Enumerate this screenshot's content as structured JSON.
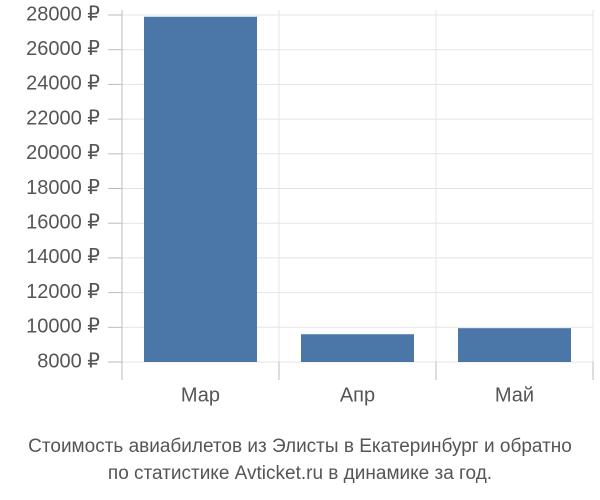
{
  "chart_data": {
    "type": "bar",
    "title": [
      "Стоимость авиабилетов из Элисты в Екатеринбург и обратно",
      "по статистике Avticket.ru в динамике за год."
    ],
    "categories": [
      "Мар",
      "Апр",
      "Май"
    ],
    "values": [
      27900,
      9600,
      9950
    ],
    "color": "#4a76a8",
    "ylim": [
      8000,
      28000
    ],
    "yticks": [
      {
        "value": 8000,
        "label": "8000 ₽"
      },
      {
        "value": 10000,
        "label": "10000 ₽"
      },
      {
        "value": 12000,
        "label": "12000 ₽"
      },
      {
        "value": 14000,
        "label": "14000 ₽"
      },
      {
        "value": 16000,
        "label": "16000 ₽"
      },
      {
        "value": 18000,
        "label": "18000 ₽"
      },
      {
        "value": 20000,
        "label": "20000 ₽"
      },
      {
        "value": 22000,
        "label": "22000 ₽"
      },
      {
        "value": 24000,
        "label": "24000 ₽"
      },
      {
        "value": 26000,
        "label": "26000 ₽"
      },
      {
        "value": 28000,
        "label": "28000 ₽"
      }
    ],
    "grid": true
  }
}
